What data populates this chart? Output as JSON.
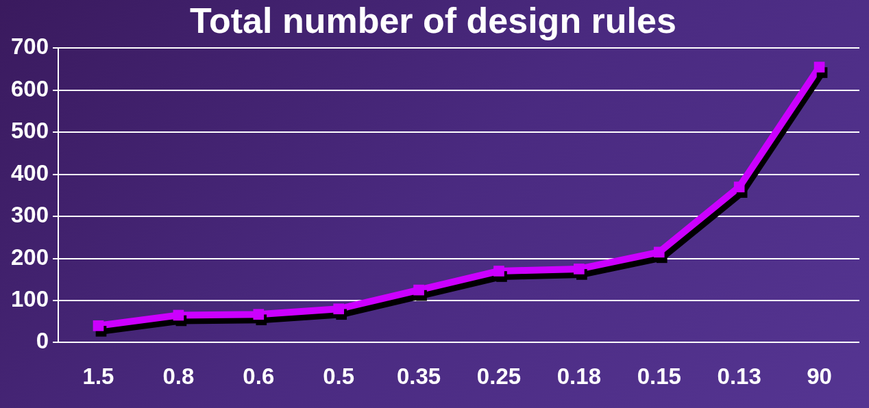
{
  "chart_data": {
    "type": "line",
    "title": "Total number of design rules",
    "categories": [
      "1.5",
      "0.8",
      "0.6",
      "0.5",
      "0.35",
      "0.25",
      "0.18",
      "0.15",
      "0.13",
      "90"
    ],
    "series": [
      {
        "color": "#cc00ff",
        "values": [
          40,
          65,
          67,
          80,
          125,
          170,
          175,
          215,
          370,
          655
        ]
      }
    ],
    "ylim": [
      0,
      700
    ],
    "yticks": [
      0,
      100,
      200,
      300,
      400,
      500,
      600,
      700
    ],
    "grid": "y",
    "legend": false,
    "marker": "square"
  }
}
